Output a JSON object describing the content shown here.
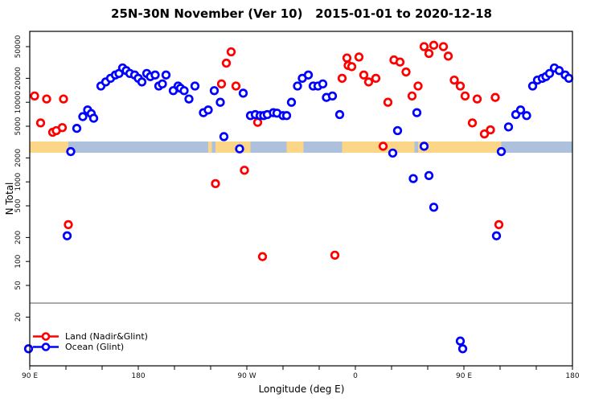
{
  "title": "25N-30N November (Ver 10)   2015-01-01 to 2020-12-18",
  "chart_data": {
    "type": "scatter",
    "title": "25N-30N November (Ver 10)   2015-01-01 to 2020-12-18",
    "x_axis": {
      "title": "Longitude (deg E)",
      "range_deg": [
        90,
        540
      ],
      "tick_step_deg": 30,
      "major_ticks": [
        {
          "deg": 90,
          "label": "90 E"
        },
        {
          "deg": 180,
          "label": "180"
        },
        {
          "deg": 270,
          "label": "90 W"
        },
        {
          "deg": 360,
          "label": "0"
        },
        {
          "deg": 450,
          "label": "90 E"
        },
        {
          "deg": 540,
          "label": "180"
        }
      ]
    },
    "y_axis": {
      "title": "N Total",
      "scale": "log",
      "range": [
        6,
        80000
      ],
      "ticks": [
        20,
        50,
        100,
        200,
        500,
        1000,
        2000,
        5000,
        10000,
        20000,
        50000
      ]
    },
    "threshold_line": {
      "value": 30,
      "color": "#A9A9A9"
    },
    "surface_band": {
      "description": "land/ocean strip drawn across plot near N=3000",
      "land_color": "#FBD687",
      "ocean_color": "#AEC1DC",
      "segments": [
        {
          "from": 90,
          "to": 122,
          "surface": "land"
        },
        {
          "from": 122,
          "to": 238,
          "surface": "ocean"
        },
        {
          "from": 238,
          "to": 241,
          "surface": "land"
        },
        {
          "from": 241,
          "to": 244,
          "surface": "ocean"
        },
        {
          "from": 244,
          "to": 273,
          "surface": "land"
        },
        {
          "from": 273,
          "to": 303,
          "surface": "ocean"
        },
        {
          "from": 303,
          "to": 317,
          "surface": "land"
        },
        {
          "from": 317,
          "to": 349,
          "surface": "ocean"
        },
        {
          "from": 349,
          "to": 409,
          "surface": "land"
        },
        {
          "from": 409,
          "to": 412,
          "surface": "ocean"
        },
        {
          "from": 412,
          "to": 481,
          "surface": "land"
        },
        {
          "from": 481,
          "to": 540,
          "surface": "ocean"
        }
      ]
    },
    "series": [
      {
        "name": "Land (Nadir&Glint)",
        "color": "#FF0000",
        "points": [
          [
            94,
            12000
          ],
          [
            99,
            5500
          ],
          [
            104,
            11000
          ],
          [
            109,
            4200
          ],
          [
            112,
            4400
          ],
          [
            117,
            4800
          ],
          [
            118,
            11000
          ],
          [
            122,
            290
          ],
          [
            244,
            950
          ],
          [
            249,
            17000
          ],
          [
            253,
            31000
          ],
          [
            257,
            43000
          ],
          [
            261,
            16000
          ],
          [
            268,
            1400
          ],
          [
            279,
            5600
          ],
          [
            283,
            115
          ],
          [
            343,
            120
          ],
          [
            349,
            20000
          ],
          [
            353,
            36000
          ],
          [
            354,
            29000
          ],
          [
            357,
            28000
          ],
          [
            363,
            37000
          ],
          [
            367,
            22000
          ],
          [
            371,
            18000
          ],
          [
            377,
            20000
          ],
          [
            383,
            2800
          ],
          [
            387,
            10000
          ],
          [
            392,
            34000
          ],
          [
            397,
            32000
          ],
          [
            402,
            24000
          ],
          [
            407,
            12000
          ],
          [
            412,
            16000
          ],
          [
            417,
            50000
          ],
          [
            421,
            41000
          ],
          [
            425,
            52000
          ],
          [
            433,
            50000
          ],
          [
            437,
            38000
          ],
          [
            442,
            19000
          ],
          [
            447,
            16000
          ],
          [
            451,
            12000
          ],
          [
            457,
            5500
          ],
          [
            461,
            11000
          ],
          [
            467,
            4000
          ],
          [
            472,
            4500
          ],
          [
            476,
            11500
          ],
          [
            479,
            290
          ]
        ]
      },
      {
        "name": "Ocean (Glint)",
        "color": "#0000FF",
        "points": [
          [
            89,
            8
          ],
          [
            121,
            210
          ],
          [
            124,
            2400
          ],
          [
            129,
            4700
          ],
          [
            134,
            6600
          ],
          [
            138,
            8000
          ],
          [
            141,
            7200
          ],
          [
            143,
            6300
          ],
          [
            149,
            16000
          ],
          [
            153,
            18000
          ],
          [
            157,
            20000
          ],
          [
            161,
            22000
          ],
          [
            164,
            23000
          ],
          [
            167,
            27000
          ],
          [
            170,
            25000
          ],
          [
            173,
            23000
          ],
          [
            177,
            22000
          ],
          [
            180,
            20000
          ],
          [
            183,
            18000
          ],
          [
            187,
            23000
          ],
          [
            190,
            21000
          ],
          [
            194,
            22000
          ],
          [
            197,
            16000
          ],
          [
            200,
            17000
          ],
          [
            203,
            22000
          ],
          [
            209,
            14000
          ],
          [
            213,
            16000
          ],
          [
            215,
            15000
          ],
          [
            218,
            14000
          ],
          [
            222,
            11000
          ],
          [
            227,
            16000
          ],
          [
            234,
            7400
          ],
          [
            238,
            8000
          ],
          [
            243,
            14000
          ],
          [
            248,
            10000
          ],
          [
            251,
            3700
          ],
          [
            264,
            2600
          ],
          [
            267,
            13000
          ],
          [
            273,
            6800
          ],
          [
            277,
            7000
          ],
          [
            281,
            6800
          ],
          [
            284,
            6800
          ],
          [
            287,
            7000
          ],
          [
            292,
            7400
          ],
          [
            295,
            7300
          ],
          [
            300,
            6800
          ],
          [
            303,
            6800
          ],
          [
            307,
            10000
          ],
          [
            312,
            16000
          ],
          [
            316,
            20000
          ],
          [
            321,
            22000
          ],
          [
            325,
            16000
          ],
          [
            329,
            16000
          ],
          [
            333,
            17000
          ],
          [
            336,
            11500
          ],
          [
            341,
            12000
          ],
          [
            347,
            7000
          ],
          [
            391,
            2300
          ],
          [
            395,
            4400
          ],
          [
            408,
            1100
          ],
          [
            411,
            7400
          ],
          [
            417,
            2800
          ],
          [
            421,
            1200
          ],
          [
            425,
            480
          ],
          [
            447,
            10
          ],
          [
            449,
            8
          ],
          [
            477,
            210
          ],
          [
            481,
            2400
          ],
          [
            487,
            4900
          ],
          [
            493,
            7000
          ],
          [
            497,
            8000
          ],
          [
            502,
            6800
          ],
          [
            507,
            16000
          ],
          [
            511,
            19000
          ],
          [
            515,
            20000
          ],
          [
            518,
            21000
          ],
          [
            521,
            23000
          ],
          [
            525,
            27000
          ],
          [
            529,
            25000
          ],
          [
            534,
            22000
          ],
          [
            537,
            20000
          ]
        ]
      }
    ],
    "legend_position": "bottom-left"
  },
  "legend": {
    "items": [
      {
        "label": "Land (Nadir&Glint)",
        "color": "#FF0000"
      },
      {
        "label": "Ocean (Glint)",
        "color": "#0000FF"
      }
    ]
  },
  "y_axis_title": "N Total",
  "x_axis_title": "Longitude (deg E)"
}
